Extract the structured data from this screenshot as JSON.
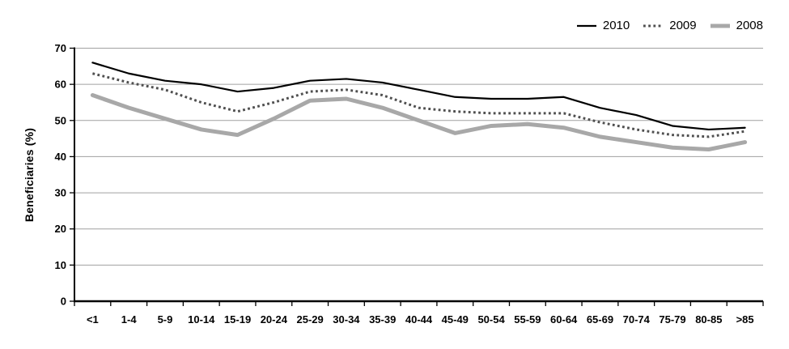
{
  "chart_data": {
    "type": "line",
    "title": "",
    "xlabel": "",
    "ylabel": "Beneficiaries (%)",
    "ylim": [
      0,
      70
    ],
    "yticks": [
      0,
      10,
      20,
      30,
      40,
      50,
      60,
      70
    ],
    "grid": "horizontal",
    "legend_position": "top-right",
    "categories": [
      "<1",
      "1-4",
      "5-9",
      "10-14",
      "15-19",
      "20-24",
      "25-29",
      "30-34",
      "35-39",
      "40-44",
      "45-49",
      "50-54",
      "55-59",
      "60-64",
      "65-69",
      "70-74",
      "75-79",
      "80-85",
      ">85"
    ],
    "series": [
      {
        "name": "2010",
        "style": "solid",
        "color": "#000000",
        "width": 2.2,
        "values": [
          66,
          63,
          61,
          60,
          58,
          59,
          61,
          61.5,
          60.5,
          58.5,
          56.5,
          56,
          56,
          56.5,
          53.5,
          51.5,
          48.5,
          47.5,
          48
        ]
      },
      {
        "name": "2009",
        "style": "dotted",
        "color": "#4f4f4f",
        "width": 3,
        "values": [
          63,
          60.5,
          58.5,
          55,
          52.5,
          55,
          58,
          58.5,
          57,
          53.5,
          52.5,
          52,
          52,
          52,
          49.5,
          47.5,
          46,
          45.5,
          47
        ]
      },
      {
        "name": "2008",
        "style": "solid",
        "color": "#a8a8a8",
        "width": 5,
        "values": [
          57,
          53.5,
          50.5,
          47.5,
          46,
          50.5,
          55.5,
          56,
          53.5,
          50,
          46.5,
          48.5,
          49,
          48,
          45.5,
          44,
          42.5,
          42,
          44
        ]
      }
    ]
  },
  "colors": {
    "background": "#ffffff",
    "gridline": "#a0a0a0",
    "axis": "#000000",
    "tick_label": "#000000"
  }
}
